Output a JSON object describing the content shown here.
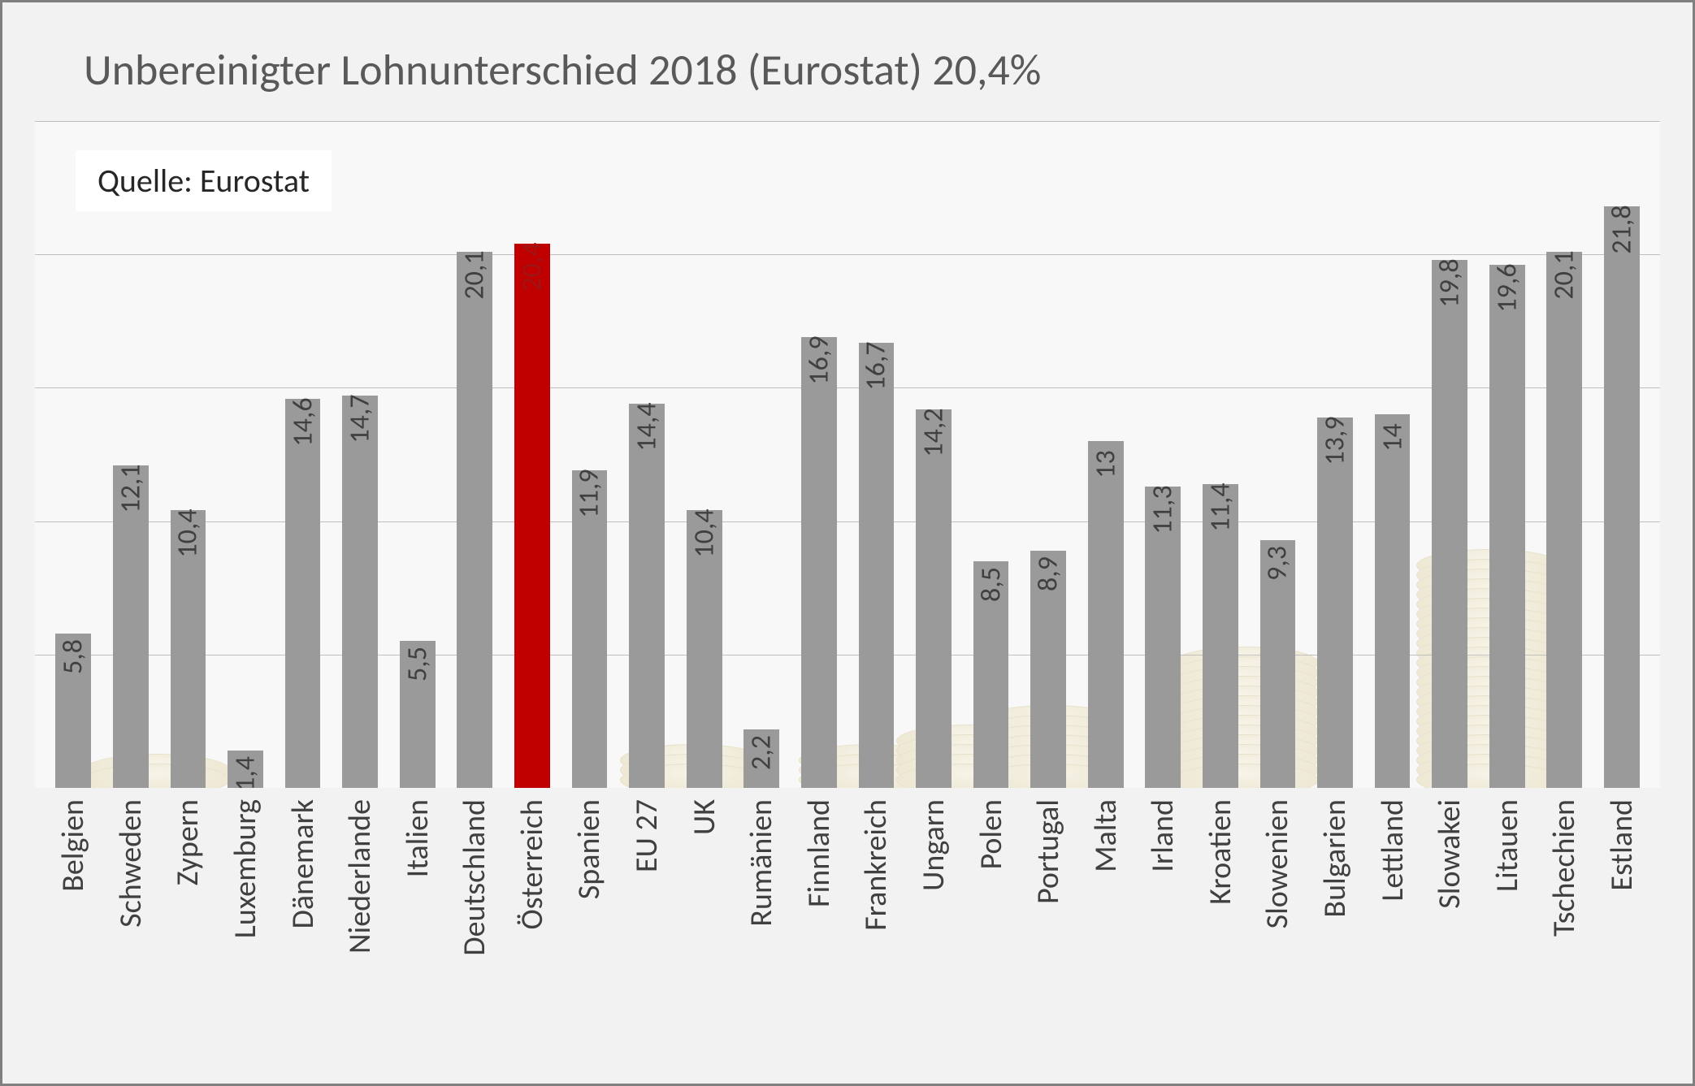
{
  "chart": {
    "type": "bar",
    "title": "Unbereinigter Lohnunterschied 2018 (Eurostat) 20,4%",
    "title_color": "#595959",
    "title_fontsize": 54,
    "source_label": "Quelle: Eurostat",
    "source_fontsize": 40,
    "background_color": "#f2f2f2",
    "plot_background": "#f8f8f8",
    "frame_border_color": "#808080",
    "grid_color": "#bfbfbf",
    "bar_color": "#9a9a9a",
    "highlight_color": "#c00000",
    "label_color": "#404040",
    "highlight_label_color": "#a01414",
    "bar_label_fontsize": 34,
    "xlabel_fontsize": 38,
    "ymin": 0,
    "ymax": 25,
    "ytick_step": 5,
    "bar_width_pct": 62,
    "highlight_index": 8,
    "categories": [
      "Belgien",
      "Schweden",
      "Zypern",
      "Luxemburg",
      "Dänemark",
      "Niederlande",
      "Italien",
      "Deutschland",
      "Österreich",
      "Spanien",
      "EU 27",
      "UK",
      "Rumänien",
      "Finnland",
      "Frankreich",
      "Ungarn",
      "Polen",
      "Portugal",
      "Malta",
      "Irland",
      "Kroatien",
      "Slowenien",
      "Bulgarien",
      "Lettland",
      "Slowakei",
      "Litauen",
      "Tschechien",
      "Estland"
    ],
    "values": [
      5.8,
      12.1,
      10.4,
      1.4,
      14.6,
      14.7,
      5.5,
      20.1,
      20.4,
      11.9,
      14.4,
      10.4,
      2.2,
      16.9,
      16.7,
      14.2,
      8.5,
      8.9,
      13,
      11.3,
      11.4,
      9.3,
      13.9,
      14,
      19.8,
      19.6,
      20.1,
      21.8
    ],
    "value_labels": [
      "5,8",
      "12,1",
      "10,4",
      "1,4",
      "14,6",
      "14,7",
      "5,5",
      "20,1",
      "20,4",
      "11,9",
      "14,4",
      "10,4",
      "2,2",
      "16,9",
      "16,7",
      "14,2",
      "8,5",
      "8,9",
      "13",
      "11,3",
      "11,4",
      "9,3",
      "13,9",
      "14",
      "19,8",
      "19,6",
      "20,1",
      "21,8"
    ]
  }
}
